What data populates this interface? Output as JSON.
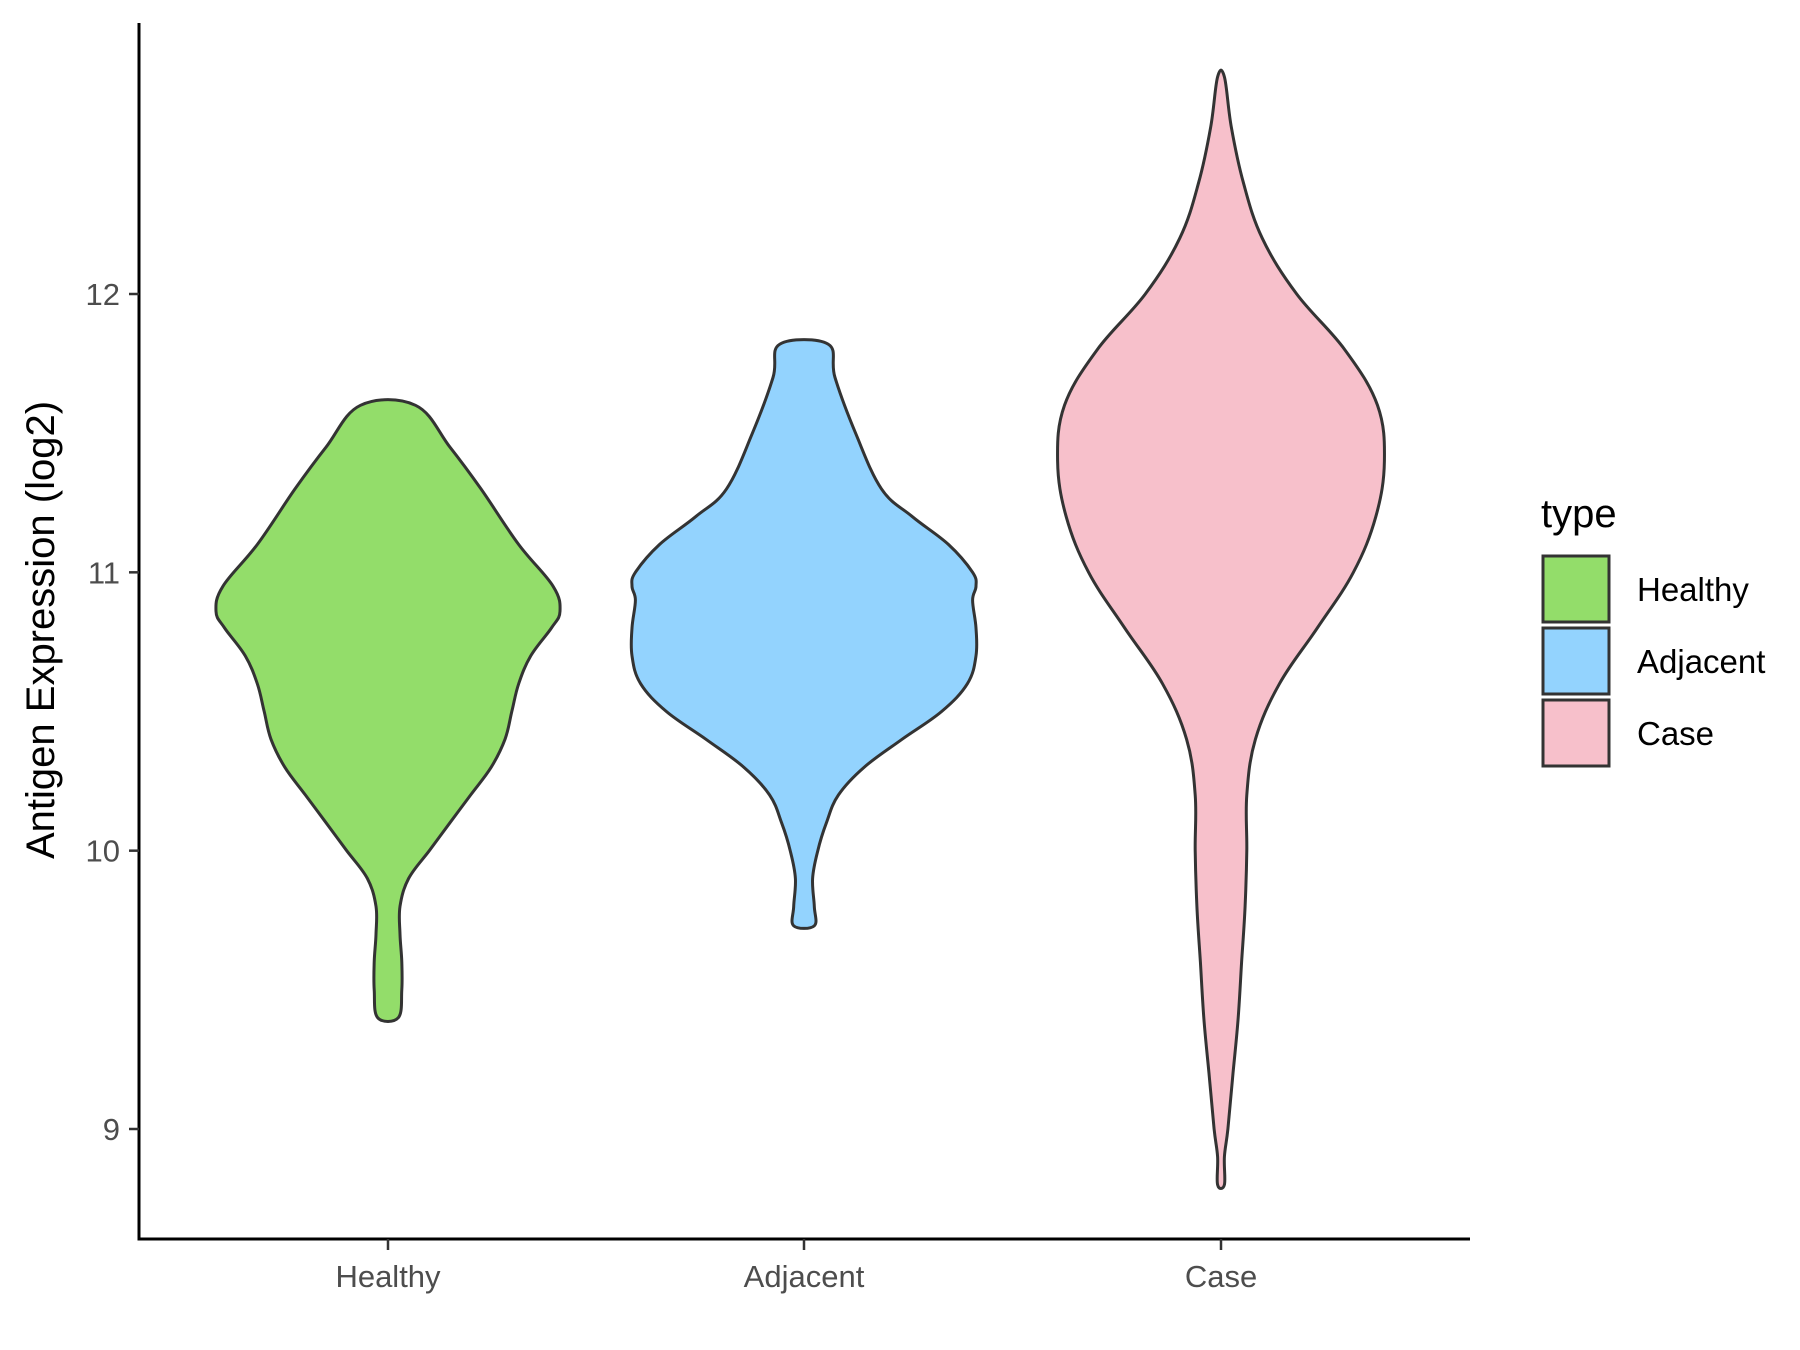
{
  "chart_data": {
    "type": "violin",
    "ylabel": "Antigen Expression (log2)",
    "xlabel": "",
    "categories": [
      "Healthy",
      "Adjacent",
      "Case"
    ],
    "ylim": [
      8.62,
      13.0
    ],
    "yticks": [
      9,
      10,
      11,
      12
    ],
    "legend": {
      "title": "type",
      "position": "right",
      "entries": [
        "Healthy",
        "Adjacent",
        "Case"
      ]
    },
    "colors": {
      "Healthy": "#93dd6a",
      "Adjacent": "#93d3fe",
      "Case": "#f7c0cb"
    },
    "series": [
      {
        "category": "Healthy",
        "min": 9.4,
        "max": 11.6,
        "density": [
          [
            9.4,
            0.06
          ],
          [
            9.5,
            0.08
          ],
          [
            9.6,
            0.08
          ],
          [
            9.7,
            0.07
          ],
          [
            9.8,
            0.07
          ],
          [
            9.9,
            0.12
          ],
          [
            10.0,
            0.24
          ],
          [
            10.1,
            0.36
          ],
          [
            10.2,
            0.48
          ],
          [
            10.3,
            0.6
          ],
          [
            10.4,
            0.68
          ],
          [
            10.5,
            0.72
          ],
          [
            10.6,
            0.76
          ],
          [
            10.7,
            0.83
          ],
          [
            10.8,
            0.95
          ],
          [
            10.86,
            1.0
          ],
          [
            10.95,
            0.96
          ],
          [
            11.1,
            0.76
          ],
          [
            11.3,
            0.54
          ],
          [
            11.45,
            0.36
          ],
          [
            11.6,
            0.16
          ]
        ]
      },
      {
        "category": "Adjacent",
        "min": 9.73,
        "max": 11.82,
        "density": [
          [
            9.73,
            0.06
          ],
          [
            9.8,
            0.06
          ],
          [
            9.9,
            0.05
          ],
          [
            10.0,
            0.08
          ],
          [
            10.1,
            0.13
          ],
          [
            10.2,
            0.2
          ],
          [
            10.3,
            0.35
          ],
          [
            10.4,
            0.57
          ],
          [
            10.5,
            0.8
          ],
          [
            10.6,
            0.95
          ],
          [
            10.7,
            1.0
          ],
          [
            10.8,
            1.0
          ],
          [
            10.9,
            0.98
          ],
          [
            10.95,
            1.0
          ],
          [
            11.0,
            0.98
          ],
          [
            11.1,
            0.84
          ],
          [
            11.2,
            0.63
          ],
          [
            11.3,
            0.45
          ],
          [
            11.5,
            0.3
          ],
          [
            11.7,
            0.18
          ],
          [
            11.82,
            0.14
          ]
        ]
      },
      {
        "category": "Case",
        "min": 8.8,
        "max": 12.78,
        "density": [
          [
            8.8,
            0.02
          ],
          [
            8.9,
            0.02
          ],
          [
            9.0,
            0.04
          ],
          [
            9.2,
            0.07
          ],
          [
            9.4,
            0.1
          ],
          [
            9.6,
            0.12
          ],
          [
            9.8,
            0.14
          ],
          [
            10.0,
            0.15
          ],
          [
            10.2,
            0.15
          ],
          [
            10.4,
            0.2
          ],
          [
            10.6,
            0.34
          ],
          [
            10.8,
            0.56
          ],
          [
            11.0,
            0.77
          ],
          [
            11.2,
            0.9
          ],
          [
            11.4,
            0.95
          ],
          [
            11.6,
            0.91
          ],
          [
            11.8,
            0.72
          ],
          [
            12.0,
            0.44
          ],
          [
            12.2,
            0.24
          ],
          [
            12.4,
            0.13
          ],
          [
            12.6,
            0.06
          ],
          [
            12.78,
            0.02
          ]
        ]
      }
    ]
  }
}
